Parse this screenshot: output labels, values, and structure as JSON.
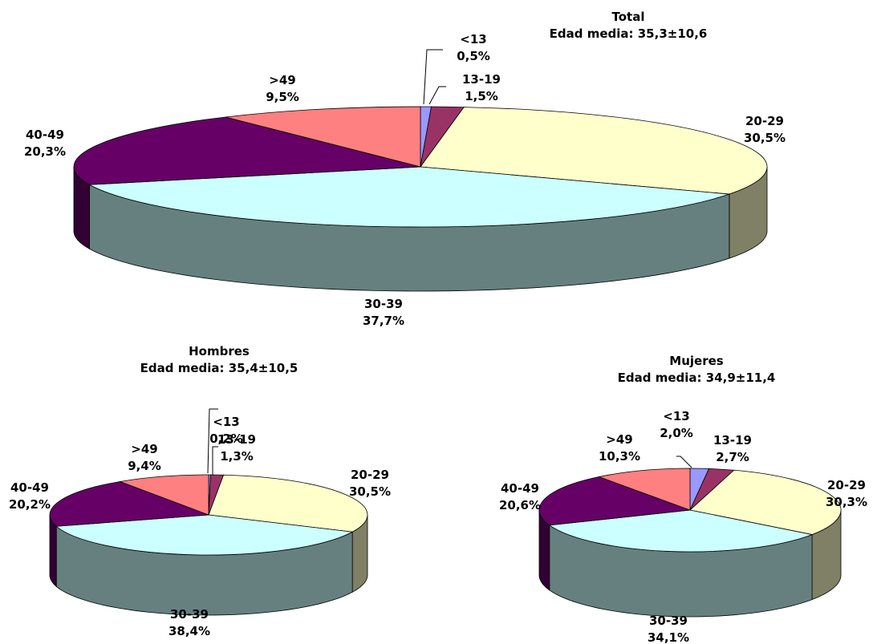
{
  "chart_data": [
    {
      "type": "pie",
      "title": "Total",
      "subtitle": "Edad media: 35,3±10,6",
      "categories": [
        "<13",
        "13-19",
        "20-29",
        "30-39",
        "40-49",
        ">49"
      ],
      "values": [
        0.5,
        1.5,
        30.5,
        37.7,
        20.3,
        9.5
      ],
      "labels": [
        "0,5%",
        "1,5%",
        "30,5%",
        "37,7%",
        "20,3%",
        "9,5%"
      ]
    },
    {
      "type": "pie",
      "title": "Hombres",
      "subtitle": "Edad media: 35,4±10,5",
      "categories": [
        "<13",
        "13-19",
        "20-29",
        "30-39",
        "40-49",
        ">49"
      ],
      "values": [
        0.2,
        1.3,
        30.5,
        38.4,
        20.2,
        9.4
      ],
      "labels": [
        "0,2%",
        "1,3%",
        "30,5%",
        "38,4%",
        "20,2%",
        "9,4%"
      ]
    },
    {
      "type": "pie",
      "title": "Mujeres",
      "subtitle": "Edad media: 34,9±11,4",
      "categories": [
        "<13",
        "13-19",
        "20-29",
        "30-39",
        "40-49",
        ">49"
      ],
      "values": [
        2.0,
        2.7,
        30.3,
        34.1,
        20.6,
        10.3
      ],
      "labels": [
        "2,0%",
        "2,7%",
        "30,3%",
        "34,1%",
        "20,6%",
        "10,3%"
      ]
    }
  ],
  "colors": {
    "<13": "#9999ff",
    "13-19": "#993366",
    "20-29": "#ffffcc",
    "30-39": "#ccffff",
    "40-49": "#660066",
    ">49": "#ff8080"
  }
}
